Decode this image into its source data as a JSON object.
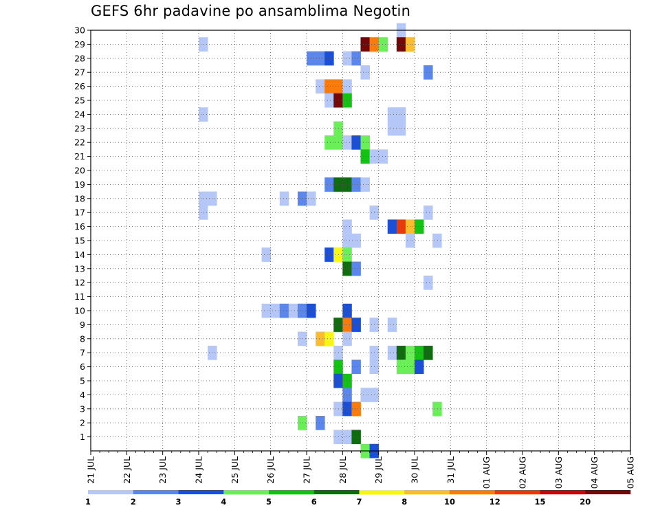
{
  "chart_data": {
    "type": "heatmap",
    "title": "GEFS 6hr padavine po ansamblima Negotin",
    "xlabel": "",
    "ylabel": "",
    "x_ticks": [
      "21 JUL",
      "22 JUL",
      "23 JUL",
      "24 JUL",
      "25 JUL",
      "26 JUL",
      "27 JUL",
      "28 JUL",
      "29 JUL",
      "30 JUL",
      "31 JUL",
      "01 AUG",
      "02 AUG",
      "03 AUG",
      "04 AUG",
      "05 AUG"
    ],
    "y_ticks": [
      1,
      2,
      3,
      4,
      5,
      6,
      7,
      8,
      9,
      10,
      11,
      12,
      13,
      14,
      15,
      16,
      17,
      18,
      19,
      20,
      21,
      22,
      23,
      24,
      25,
      26,
      27,
      28,
      29,
      30
    ],
    "xlim": [
      "21 JUL 00Z",
      "05 AUG 00Z"
    ],
    "ylim": [
      0,
      30
    ],
    "time_step_hours": 6,
    "grid": true,
    "colorbar": {
      "labels": [
        "1",
        "2",
        "3",
        "4",
        "5",
        "6",
        "7",
        "8",
        "10",
        "12",
        "15",
        "20"
      ],
      "colors": [
        "#b4c7f7",
        "#5b87ec",
        "#1a4fd6",
        "#6bef58",
        "#14c214",
        "#0f6d0f",
        "#f7f716",
        "#fbbc2e",
        "#f77c0c",
        "#e83b0c",
        "#c20a0a",
        "#740808"
      ]
    },
    "cells": [
      [
        24,
        "24 JUL 00Z",
        0
      ],
      [
        29,
        "24 JUL 00Z",
        0
      ],
      [
        18,
        "24 JUL 00Z",
        0
      ],
      [
        17,
        "24 JUL 00Z",
        0
      ],
      [
        18,
        "24 JUL 06Z",
        0
      ],
      [
        7,
        "24 JUL 06Z",
        0
      ],
      [
        14,
        "25 JUL 18Z",
        0
      ],
      [
        10,
        "25 JUL 18Z",
        0
      ],
      [
        10,
        "26 JUL 00Z",
        0
      ],
      [
        10,
        "26 JUL 06Z",
        1
      ],
      [
        18,
        "26 JUL 06Z",
        0
      ],
      [
        10,
        "26 JUL 12Z",
        0
      ],
      [
        18,
        "26 JUL 18Z",
        1
      ],
      [
        10,
        "26 JUL 18Z",
        1
      ],
      [
        8,
        "26 JUL 18Z",
        0
      ],
      [
        2,
        "26 JUL 18Z",
        3
      ],
      [
        10,
        "27 JUL 00Z",
        2
      ],
      [
        18,
        "27 JUL 00Z",
        0
      ],
      [
        28,
        "27 JUL 00Z",
        1
      ],
      [
        28,
        "27 JUL 06Z",
        1
      ],
      [
        2,
        "27 JUL 06Z",
        1
      ],
      [
        26,
        "27 JUL 06Z",
        0
      ],
      [
        28,
        "27 JUL 12Z",
        2
      ],
      [
        26,
        "27 JUL 12Z",
        8
      ],
      [
        25,
        "27 JUL 12Z",
        0
      ],
      [
        22,
        "27 JUL 12Z",
        3
      ],
      [
        19,
        "27 JUL 12Z",
        1
      ],
      [
        14,
        "27 JUL 12Z",
        2
      ],
      [
        8,
        "27 JUL 06Z",
        7
      ],
      [
        8,
        "27 JUL 12Z",
        6
      ],
      [
        26,
        "27 JUL 18Z",
        8
      ],
      [
        25,
        "27 JUL 18Z",
        11
      ],
      [
        23,
        "27 JUL 18Z",
        3
      ],
      [
        22,
        "27 JUL 18Z",
        3
      ],
      [
        19,
        "27 JUL 18Z",
        5
      ],
      [
        14,
        "27 JUL 18Z",
        6
      ],
      [
        9,
        "27 JUL 18Z",
        5
      ],
      [
        7,
        "27 JUL 18Z",
        0
      ],
      [
        6,
        "27 JUL 18Z",
        4
      ],
      [
        5,
        "27 JUL 18Z",
        2
      ],
      [
        3,
        "27 JUL 18Z",
        0
      ],
      [
        1,
        "27 JUL 18Z",
        0
      ],
      [
        28,
        "28 JUL 00Z",
        0
      ],
      [
        26,
        "28 JUL 00Z",
        0
      ],
      [
        25,
        "28 JUL 00Z",
        4
      ],
      [
        22,
        "28 JUL 00Z",
        0
      ],
      [
        19,
        "28 JUL 00Z",
        5
      ],
      [
        16,
        "28 JUL 00Z",
        0
      ],
      [
        15,
        "28 JUL 00Z",
        0
      ],
      [
        14,
        "28 JUL 00Z",
        3
      ],
      [
        13,
        "28 JUL 00Z",
        5
      ],
      [
        10,
        "28 JUL 00Z",
        2
      ],
      [
        9,
        "28 JUL 00Z",
        8
      ],
      [
        8,
        "28 JUL 00Z",
        0
      ],
      [
        5,
        "28 JUL 00Z",
        4
      ],
      [
        4,
        "28 JUL 00Z",
        1
      ],
      [
        3,
        "28 JUL 00Z",
        2
      ],
      [
        1,
        "28 JUL 00Z",
        0
      ],
      [
        28,
        "28 JUL 06Z",
        1
      ],
      [
        22,
        "28 JUL 06Z",
        2
      ],
      [
        19,
        "28 JUL 06Z",
        1
      ],
      [
        15,
        "28 JUL 06Z",
        0
      ],
      [
        13,
        "28 JUL 06Z",
        1
      ],
      [
        9,
        "28 JUL 06Z",
        2
      ],
      [
        6,
        "28 JUL 06Z",
        1
      ],
      [
        3,
        "28 JUL 06Z",
        8
      ],
      [
        1,
        "28 JUL 06Z",
        5
      ],
      [
        29,
        "28 JUL 12Z",
        11
      ],
      [
        27,
        "28 JUL 12Z",
        0
      ],
      [
        22,
        "28 JUL 12Z",
        3
      ],
      [
        21,
        "28 JUL 12Z",
        4
      ],
      [
        19,
        "28 JUL 12Z",
        0
      ],
      [
        4,
        "28 JUL 12Z",
        0
      ],
      [
        0,
        "28 JUL 12Z",
        3
      ],
      [
        29,
        "28 JUL 18Z",
        8
      ],
      [
        21,
        "28 JUL 18Z",
        0
      ],
      [
        17,
        "28 JUL 18Z",
        0
      ],
      [
        9,
        "28 JUL 18Z",
        0
      ],
      [
        7,
        "28 JUL 18Z",
        0
      ],
      [
        6,
        "28 JUL 18Z",
        0
      ],
      [
        4,
        "28 JUL 18Z",
        0
      ],
      [
        0,
        "28 JUL 18Z",
        2
      ],
      [
        29,
        "29 JUL 00Z",
        3
      ],
      [
        21,
        "29 JUL 00Z",
        0
      ],
      [
        23,
        "29 JUL 06Z",
        0
      ],
      [
        24,
        "29 JUL 06Z",
        0
      ],
      [
        9,
        "29 JUL 06Z",
        0
      ],
      [
        7,
        "29 JUL 06Z",
        0
      ],
      [
        16,
        "29 JUL 06Z",
        2
      ],
      [
        30,
        "29 JUL 12Z",
        0
      ],
      [
        29,
        "29 JUL 12Z",
        11
      ],
      [
        24,
        "29 JUL 12Z",
        0
      ],
      [
        23,
        "29 JUL 12Z",
        0
      ],
      [
        16,
        "29 JUL 12Z",
        9
      ],
      [
        7,
        "29 JUL 12Z",
        5
      ],
      [
        6,
        "29 JUL 12Z",
        3
      ],
      [
        29,
        "29 JUL 18Z",
        7
      ],
      [
        16,
        "29 JUL 18Z",
        7
      ],
      [
        15,
        "29 JUL 18Z",
        0
      ],
      [
        7,
        "29 JUL 18Z",
        3
      ],
      [
        6,
        "29 JUL 18Z",
        3
      ],
      [
        16,
        "30 JUL 00Z",
        4
      ],
      [
        7,
        "30 JUL 00Z",
        4
      ],
      [
        6,
        "30 JUL 00Z",
        2
      ],
      [
        17,
        "30 JUL 06Z",
        0
      ],
      [
        27,
        "30 JUL 06Z",
        1
      ],
      [
        7,
        "30 JUL 06Z",
        5
      ],
      [
        12,
        "30 JUL 06Z",
        0
      ],
      [
        15,
        "30 JUL 12Z",
        0
      ],
      [
        3,
        "30 JUL 12Z",
        3
      ]
    ]
  }
}
